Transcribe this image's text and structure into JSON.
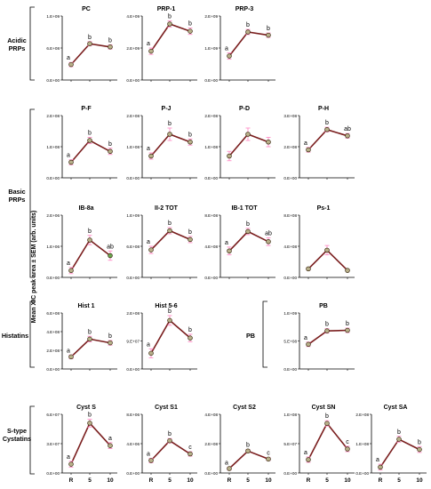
{
  "y_axis_label": "Mean XIC peak area ± SEM  (arb. units)",
  "x_categories": [
    "R",
    "5",
    "10"
  ],
  "groups": [
    {
      "label_lines": [
        "Acidic",
        "PRPs"
      ]
    },
    {
      "label_lines": [
        "Basic",
        "PRPs"
      ]
    },
    {
      "label_lines": [
        "Histatins"
      ]
    },
    {
      "label_lines": [
        "PB"
      ]
    },
    {
      "label_lines": [
        "S-type",
        "Cystatins"
      ]
    }
  ],
  "chart_data": [
    {
      "type": "line",
      "title": "PC",
      "categories": [
        "R",
        "5",
        "10"
      ],
      "values": [
        290000000.0,
        680000000.0,
        620000000.0
      ],
      "sem": [
        40000000.0,
        40000000.0,
        40000000.0
      ],
      "letters": [
        "a",
        "b",
        "b"
      ],
      "yticks": [
        "0.E+00",
        "6.E+08",
        "1.E+09"
      ],
      "ylim": [
        0,
        1200000000.0
      ]
    },
    {
      "type": "line",
      "title": "PRP-1",
      "categories": [
        "R",
        "5",
        "10"
      ],
      "values": [
        1800000000.0,
        3500000000.0,
        3050000000.0
      ],
      "sem": [
        200000000.0,
        200000000.0,
        200000000.0
      ],
      "letters": [
        "a",
        "b",
        "b"
      ],
      "yticks": [
        "0.E+00",
        "2.E+09",
        "4.E+09"
      ],
      "ylim": [
        0,
        4000000000.0
      ]
    },
    {
      "type": "line",
      "title": "PRP-3",
      "categories": [
        "R",
        "5",
        "10"
      ],
      "values": [
        750000000.0,
        1500000000.0,
        1400000000.0
      ],
      "sem": [
        100000000.0,
        80000000.0,
        70000000.0
      ],
      "letters": [
        "a",
        "b",
        "b"
      ],
      "yticks": [
        "0.E+00",
        "1.E+09",
        "2.E+09"
      ],
      "ylim": [
        0,
        2000000000.0
      ]
    },
    {
      "type": "line",
      "title": "P-F",
      "categories": [
        "R",
        "5",
        "10"
      ],
      "values": [
        50000000.0,
        120000000.0,
        85000000.0
      ],
      "sem": [
        8000000.0,
        10000000.0,
        10000000.0
      ],
      "letters": [
        "a",
        "b",
        "b"
      ],
      "yticks": [
        "0.E+00",
        "1.E+08",
        "2.E+08"
      ],
      "ylim": [
        0,
        200000000.0
      ]
    },
    {
      "type": "line",
      "title": "P-J",
      "categories": [
        "R",
        "5",
        "10"
      ],
      "values": [
        70000000.0,
        140000000.0,
        115000000.0
      ],
      "sem": [
        10000000.0,
        20000000.0,
        10000000.0
      ],
      "letters": [
        "a",
        "b",
        "b"
      ],
      "yticks": [
        "0.E+00",
        "1.E+08",
        "2.E+08"
      ],
      "ylim": [
        0,
        200000000.0
      ]
    },
    {
      "type": "line",
      "title": "P-D",
      "categories": [
        "R",
        "5",
        "10"
      ],
      "values": [
        70000000.0,
        140000000.0,
        115000000.0
      ],
      "sem": [
        15000000.0,
        20000000.0,
        15000000.0
      ],
      "letters": [
        "",
        "",
        ""
      ],
      "yticks": [
        "0.E+00",
        "1.E+08",
        "2.E+08"
      ],
      "ylim": [
        0,
        200000000.0
      ]
    },
    {
      "type": "line",
      "title": "P-H",
      "categories": [
        "R",
        "5",
        "10"
      ],
      "values": [
        180000000.0,
        310000000.0,
        270000000.0
      ],
      "sem": [
        15000000.0,
        15000000.0,
        15000000.0
      ],
      "letters": [
        "a",
        "b",
        "ab"
      ],
      "yticks": [
        "0.E+00",
        "2.E+08",
        "3.E+08"
      ],
      "ylim": [
        0,
        400000000.0
      ]
    },
    {
      "type": "line",
      "title": "IB-8a",
      "categories": [
        "R",
        "5",
        "10"
      ],
      "values": [
        220000.0,
        1200000.0,
        700000.0
      ],
      "sem": [
        100000.0,
        150000.0,
        150000.0
      ],
      "letters": [
        "a",
        "b",
        "ab"
      ],
      "yticks": [
        "0.E+00",
        "1.E+06",
        "2.E+06"
      ],
      "ylim": [
        0,
        2000000.0
      ]
    },
    {
      "type": "line",
      "title": "II-2 TOT",
      "categories": [
        "R",
        "5",
        "10"
      ],
      "values": [
        530000000.0,
        900000000.0,
        730000000.0
      ],
      "sem": [
        70000000.0,
        60000000.0,
        60000000.0
      ],
      "letters": [
        "a",
        "b",
        "b"
      ],
      "yticks": [
        "0.E+00",
        "6.E+08",
        "1.E+09"
      ],
      "ylim": [
        0,
        1200000000.0
      ]
    },
    {
      "type": "line",
      "title": "IB-1 TOT",
      "categories": [
        "R",
        "5",
        "10"
      ],
      "values": [
        340000000.0,
        590000000.0,
        460000000.0
      ],
      "sem": [
        50000000.0,
        40000000.0,
        50000000.0
      ],
      "letters": [
        "a",
        "b",
        "ab"
      ],
      "yticks": [
        "0.E+00",
        "4.E+08",
        "8.E+08"
      ],
      "ylim": [
        0,
        800000000.0
      ]
    },
    {
      "type": "line",
      "title": "Ps-1",
      "categories": [
        "R",
        "5",
        "10"
      ],
      "values": [
        110000000.0,
        350000000.0,
        90000000.0
      ],
      "sem": [
        15000000.0,
        60000000.0,
        10000000.0
      ],
      "letters": [
        "",
        "",
        ""
      ],
      "yticks": [
        "0.E+00",
        "4.E+08",
        "8.E+08"
      ],
      "ylim": [
        0,
        800000000.0
      ]
    },
    {
      "type": "line",
      "title": "Hist 1",
      "categories": [
        "R",
        "5",
        "10"
      ],
      "values": [
        130000000.0,
        320000000.0,
        280000000.0
      ],
      "sem": [
        20000000.0,
        30000000.0,
        25000000.0
      ],
      "letters": [
        "a",
        "b",
        "b"
      ],
      "yticks": [
        "0.E+00",
        "2.E+08",
        "4.E+08",
        "6.E+08"
      ],
      "ylim": [
        0,
        600000000.0
      ]
    },
    {
      "type": "line",
      "title": "Hist 5-6",
      "categories": [
        "R",
        "5",
        "10"
      ],
      "values": [
        42000000.0,
        130000000.0,
        83000000.0
      ],
      "sem": [
        12000000.0,
        13000000.0,
        10000000.0
      ],
      "letters": [
        "a",
        "b",
        "b"
      ],
      "yticks": [
        "0.E+00",
        "9.E+07",
        "2.E+08"
      ],
      "ylim": [
        0,
        150000000.0
      ]
    },
    {
      "type": "line",
      "title": "PB",
      "categories": [
        "R",
        "5",
        "10"
      ],
      "values": [
        440000000.0,
        680000000.0,
        690000000.0
      ],
      "sem": [
        40000000.0,
        40000000.0,
        40000000.0
      ],
      "letters": [
        "a",
        "b",
        "b"
      ],
      "yticks": [
        "0.E+00",
        "5.E+08",
        "1.E+09"
      ],
      "ylim": [
        0,
        1000000000.0
      ]
    },
    {
      "type": "line",
      "title": "Cyst S",
      "categories": [
        "R",
        "5",
        "10"
      ],
      "values": [
        9000000.0,
        51000000.0,
        28000000.0
      ],
      "sem": [
        3000000.0,
        4000000.0,
        3000000.0
      ],
      "letters": [
        "a",
        "b",
        "a"
      ],
      "yticks": [
        "0.E+00",
        "3.E+07",
        "6.E+07"
      ],
      "ylim": [
        0,
        60000000.0
      ]
    },
    {
      "type": "line",
      "title": "Cyst S1",
      "categories": [
        "R",
        "5",
        "10"
      ],
      "values": [
        1700000.0,
        4400000.0,
        2600000.0
      ],
      "sem": [
        300000.0,
        300000.0,
        300000.0
      ],
      "letters": [
        "a",
        "b",
        "c"
      ],
      "yticks": [
        "0.E+00",
        "4.E+06",
        "8.E+06"
      ],
      "ylim": [
        0,
        8000000.0
      ]
    },
    {
      "type": "line",
      "title": "Cyst S2",
      "categories": [
        "R",
        "5",
        "10"
      ],
      "values": [
        30000000.0,
        150000000.0,
        95000000.0
      ],
      "sem": [
        10000000.0,
        10000000.0,
        10000000.0
      ],
      "letters": [
        "a",
        "b",
        "c"
      ],
      "yticks": [
        "0.E+00",
        "2.E+08",
        "4.E+08"
      ],
      "ylim": [
        0,
        400000000.0
      ]
    },
    {
      "type": "line",
      "title": "Cyst SN",
      "categories": [
        "R",
        "5",
        "10"
      ],
      "values": [
        25000000.0,
        93000000.0,
        45000000.0
      ],
      "sem": [
        5000000.0,
        5000000.0,
        5000000.0
      ],
      "letters": [
        "a",
        "b",
        "c"
      ],
      "yticks": [
        "0.E+00",
        "5.E+07",
        "1.E+08"
      ],
      "ylim": [
        0,
        110000000.0
      ]
    },
    {
      "type": "line",
      "title": "Cyst SA",
      "categories": [
        "R",
        "5",
        "10"
      ],
      "values": [
        20000000.0,
        115000000.0,
        80000000.0
      ],
      "sem": [
        10000000.0,
        10000000.0,
        10000000.0
      ],
      "letters": [
        "a",
        "b",
        "b"
      ],
      "yticks": [
        "0.E+00",
        "1.E+08",
        "2.E+08"
      ],
      "ylim": [
        0,
        200000000.0
      ]
    }
  ]
}
